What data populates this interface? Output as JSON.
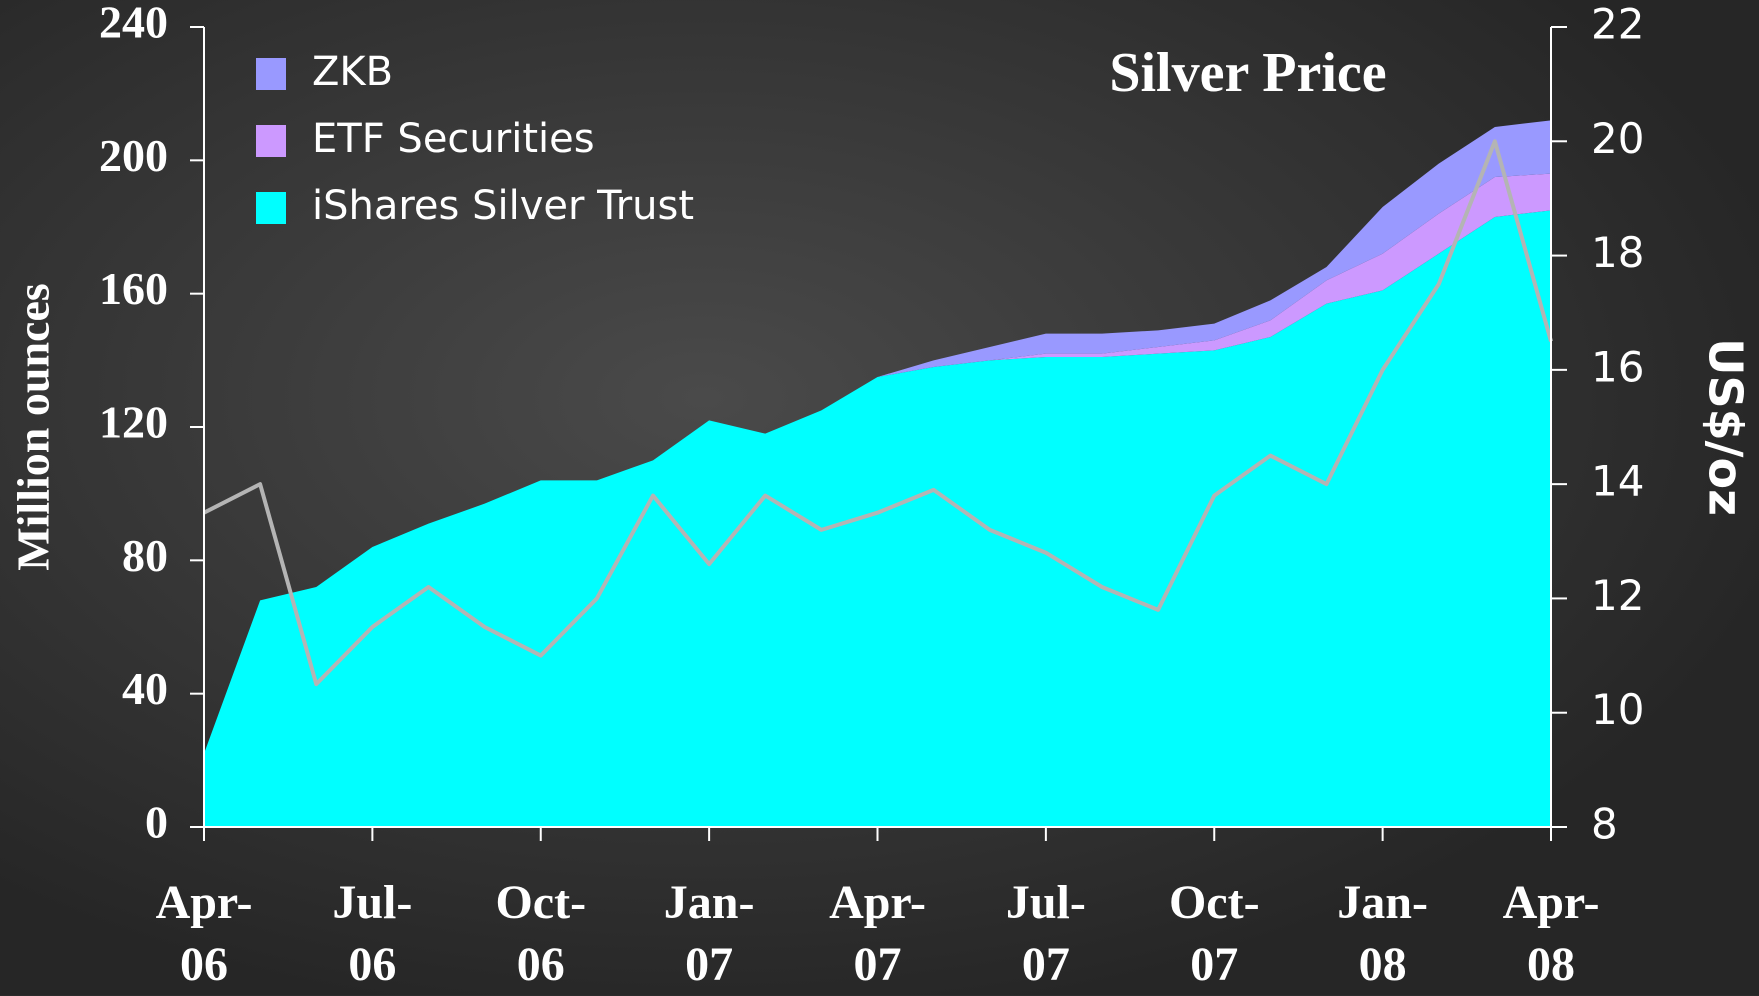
{
  "chart_data": {
    "type": "stacked-area-line",
    "categories": [
      "Apr-\n06",
      null,
      null,
      "Jul-\n06",
      null,
      null,
      "Oct-\n06",
      null,
      null,
      "Jan-\n07",
      null,
      null,
      "Apr-\n07",
      null,
      null,
      "Jul-\n07",
      null,
      null,
      "Oct-\n07",
      null,
      null,
      "Jan-\n08",
      null,
      null,
      "Apr-\n08"
    ],
    "series": [
      {
        "name": "iShares Silver Trust",
        "color": "#00ffff",
        "values": [
          22,
          68,
          72,
          84,
          91,
          97,
          104,
          104,
          110,
          122,
          118,
          125,
          135,
          138,
          140,
          141,
          141,
          142,
          143,
          147,
          157,
          161,
          172,
          183,
          185
        ]
      },
      {
        "name": "ETF Securities",
        "color": "#cc99ff",
        "values": [
          0,
          0,
          0,
          0,
          0,
          0,
          0,
          0,
          0,
          0,
          0,
          0,
          0,
          0,
          0,
          1,
          1,
          2,
          3,
          5,
          7,
          11,
          12,
          12,
          11
        ]
      },
      {
        "name": "ZKB",
        "color": "#9999ff",
        "values": [
          0,
          0,
          0,
          0,
          0,
          0,
          0,
          0,
          0,
          0,
          0,
          0,
          0,
          2,
          4,
          6,
          6,
          5,
          5,
          6,
          4,
          14,
          15,
          15,
          16
        ]
      },
      {
        "name": "Silver Price",
        "color": "#b4b4b4",
        "axis": "y2",
        "values": [
          13.5,
          14.0,
          10.5,
          11.5,
          12.2,
          11.5,
          11.0,
          12.0,
          13.8,
          12.6,
          13.8,
          13.2,
          13.5,
          13.9,
          13.2,
          12.8,
          12.2,
          11.8,
          13.8,
          14.5,
          14.0,
          16.0,
          17.5,
          20.0,
          16.5
        ]
      }
    ],
    "ylabel": "Million ounces",
    "y2label": "US$/oz",
    "ylim": [
      0,
      240
    ],
    "yticks": [
      0,
      40,
      80,
      120,
      160,
      200,
      240
    ],
    "y2lim": [
      8,
      22
    ],
    "y2ticks": [
      8,
      10,
      12,
      14,
      16,
      18,
      20,
      22
    ]
  }
}
